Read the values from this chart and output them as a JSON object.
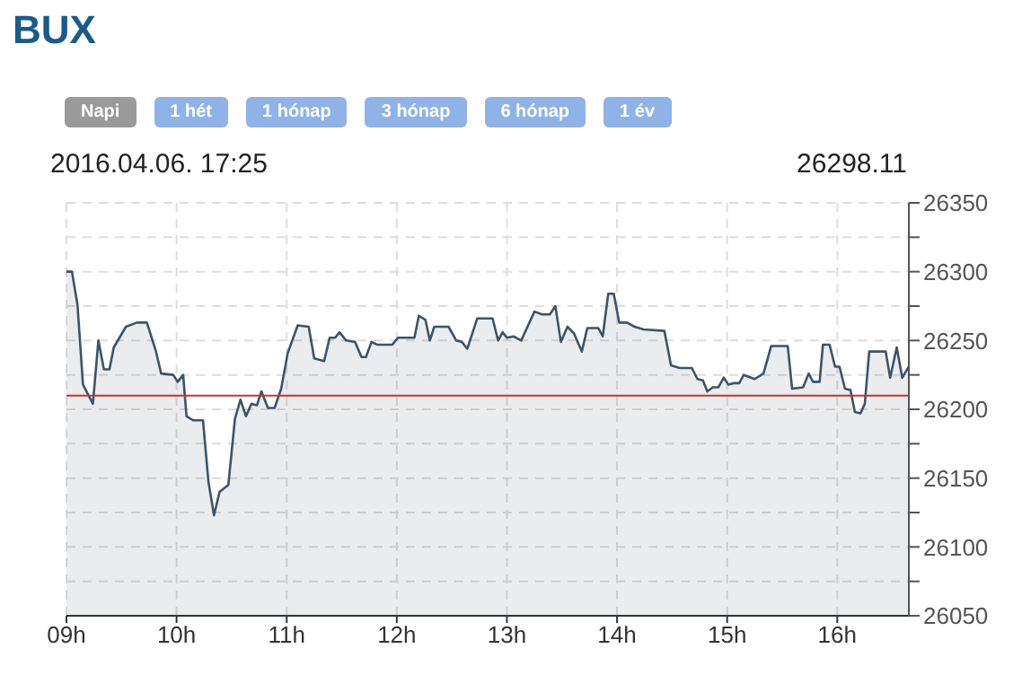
{
  "chart_data": {
    "type": "area",
    "title": "BUX",
    "annotations": [
      "2016.04.06. 17:25",
      "26298.11",
      "Napi",
      "1 hét",
      "1 hónap",
      "3 hónap",
      "6 hónap",
      "1 év"
    ],
    "x": [
      9.0,
      9.05,
      9.1,
      9.15,
      9.24,
      9.29,
      9.34,
      9.39,
      9.43,
      9.54,
      9.64,
      9.73,
      9.81,
      9.86,
      9.97,
      10.01,
      10.06,
      10.09,
      10.15,
      10.24,
      10.29,
      10.34,
      10.39,
      10.47,
      10.53,
      10.58,
      10.63,
      10.68,
      10.73,
      10.77,
      10.83,
      10.89,
      10.95,
      11.01,
      11.1,
      11.2,
      11.25,
      11.34,
      11.39,
      11.44,
      11.48,
      11.54,
      11.62,
      11.68,
      11.72,
      11.77,
      11.82,
      11.96,
      12.01,
      12.16,
      12.2,
      12.26,
      12.3,
      12.34,
      12.47,
      12.54,
      12.59,
      12.64,
      12.73,
      12.87,
      12.92,
      12.96,
      13.0,
      13.06,
      13.13,
      13.25,
      13.32,
      13.39,
      13.44,
      13.49,
      13.55,
      13.61,
      13.68,
      13.73,
      13.83,
      13.87,
      13.92,
      13.97,
      14.02,
      14.09,
      14.16,
      14.24,
      14.43,
      14.49,
      14.57,
      14.68,
      14.73,
      14.78,
      14.82,
      14.87,
      14.92,
      14.97,
      15.01,
      15.06,
      15.11,
      15.15,
      15.25,
      15.33,
      15.4,
      15.55,
      15.59,
      15.69,
      15.74,
      15.78,
      15.84,
      15.87,
      15.93,
      15.98,
      16.02,
      16.07,
      16.12,
      16.16,
      16.21,
      16.25,
      16.29,
      16.44,
      16.48,
      16.54,
      16.59,
      16.65
    ],
    "series": [
      {
        "color": "#3d5468",
        "values": [
          26300,
          26300,
          26276,
          26218,
          26204,
          26250,
          26229,
          26229,
          26245,
          26260,
          26263,
          26263,
          26243,
          26226,
          26225,
          26220,
          26225,
          26195,
          26192,
          26192,
          26147,
          26123,
          26140,
          26145,
          26193,
          26207,
          26195,
          26204,
          26203,
          26213,
          26201,
          26201,
          26215,
          26241,
          26261,
          26260,
          26237,
          26235,
          26252,
          26252,
          26256,
          26250,
          26249,
          26238,
          26238,
          26249,
          26247,
          26247,
          26252,
          26252,
          26268,
          26265,
          26250,
          26260,
          26260,
          26250,
          26249,
          26244,
          26266,
          26266,
          26250,
          26256,
          26252,
          26253,
          26250,
          26271,
          26269,
          26269,
          26275,
          26249,
          26260,
          26255,
          26242,
          26259,
          26259,
          26253,
          26284,
          26284,
          26263,
          26263,
          26260,
          26258,
          26257,
          26232,
          26230,
          26230,
          26222,
          26221,
          26213,
          26216,
          26216,
          26223,
          26218,
          26219,
          26219,
          26225,
          26222,
          26226,
          26246,
          26246,
          26215,
          26216,
          26226,
          26220,
          26220,
          26247,
          26247,
          26231,
          26231,
          26215,
          26214,
          26198,
          26197,
          26204,
          26242,
          26242,
          26223,
          26245,
          26223,
          26231
        ]
      }
    ],
    "xlim": [
      9,
      16.65
    ],
    "xticks": [
      {
        "value": 9,
        "label": "09h"
      },
      {
        "value": 10,
        "label": "10h"
      },
      {
        "value": 11,
        "label": "11h"
      },
      {
        "value": 12,
        "label": "12h"
      },
      {
        "value": 13,
        "label": "13h"
      },
      {
        "value": 14,
        "label": "14h"
      },
      {
        "value": 15,
        "label": "15h"
      },
      {
        "value": 16,
        "label": "16h"
      }
    ],
    "ylim": [
      26050,
      26350
    ],
    "yticks": [
      26050,
      {
        "value": 26075,
        "label": null
      },
      26100,
      {
        "value": 26125,
        "label": null
      },
      26150,
      {
        "value": 26175,
        "label": null
      },
      26200,
      {
        "value": 26225,
        "label": null
      },
      26250,
      {
        "value": 26275,
        "label": null
      },
      26300,
      {
        "value": 26325,
        "label": null
      },
      26350
    ],
    "ref_lines": [
      {
        "axis": "y",
        "value": 26210,
        "color": "#c0392b"
      }
    ],
    "grid": true,
    "marker": "none",
    "line_style": "solid"
  }
}
